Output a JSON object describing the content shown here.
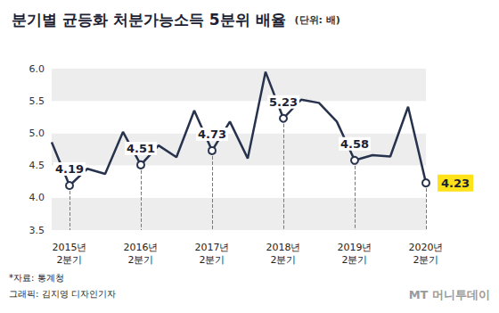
{
  "chart_data": {
    "type": "line",
    "title": "분기별 균등화 처분가능소득 5분위 배율",
    "subtitle": "(단위: 배)",
    "source": "*자료: 통계청",
    "credit": "그래픽: 김지영 디자인기자",
    "logo": "MT 머니투데이",
    "categories": [
      null,
      "2015년\n2분기",
      null,
      null,
      null,
      "2016년\n2분기",
      null,
      null,
      null,
      "2017년\n2분기",
      null,
      null,
      null,
      "2018년\n2분기",
      null,
      null,
      null,
      "2019년\n2분기",
      null,
      null,
      null,
      "2020년\n2분기"
    ],
    "values": [
      4.86,
      4.19,
      4.45,
      4.37,
      5.02,
      4.51,
      4.81,
      4.63,
      5.35,
      4.73,
      5.18,
      4.61,
      5.95,
      5.23,
      5.52,
      5.47,
      5.18,
      4.58,
      4.66,
      4.64,
      5.41,
      4.23
    ],
    "value_labels": [
      null,
      "4.19",
      null,
      null,
      null,
      "4.51",
      null,
      null,
      null,
      "4.73",
      null,
      null,
      null,
      "5.23",
      null,
      null,
      null,
      "4.58",
      null,
      null,
      null,
      "4.23"
    ],
    "color": "#27324d",
    "marker": "circle",
    "ylim": [
      3.5,
      6.0
    ],
    "yticks": [
      3.5,
      {
        "value": 4,
        "label": "4.0"
      },
      4.5,
      {
        "value": 5,
        "label": "5.0"
      },
      5.5,
      {
        "value": 6,
        "label": "6.0"
      }
    ],
    "grid": true
  }
}
